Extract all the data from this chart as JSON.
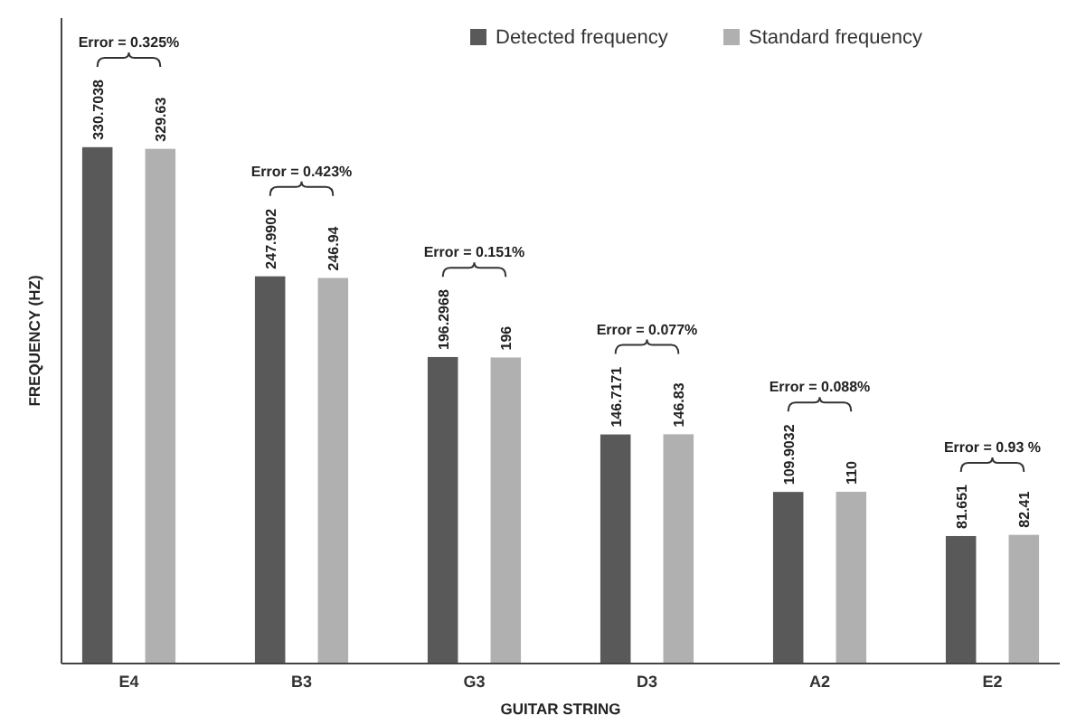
{
  "chart_data": {
    "type": "bar",
    "xlabel": "GUITAR STRING",
    "ylabel": "FREQUENCY (HZ)",
    "categories": [
      "E4",
      "B3",
      "G3",
      "D3",
      "A2",
      "E2"
    ],
    "series": [
      {
        "name": "Detected frequency",
        "color": "#595959",
        "values": [
          330.7038,
          247.9902,
          196.2968,
          146.7171,
          109.9032,
          81.651
        ]
      },
      {
        "name": "Standard frequency",
        "color": "#b0b0b0",
        "values": [
          329.63,
          246.94,
          196,
          146.83,
          110,
          82.41
        ]
      }
    ],
    "data_labels": true,
    "legend": "top right",
    "annotations": [
      "Error = 0.325%",
      "Error = 0.423%",
      "Error = 0.151%",
      "Error = 0.077%",
      "Error = 0.088%",
      "Error = 0.93 %"
    ]
  }
}
